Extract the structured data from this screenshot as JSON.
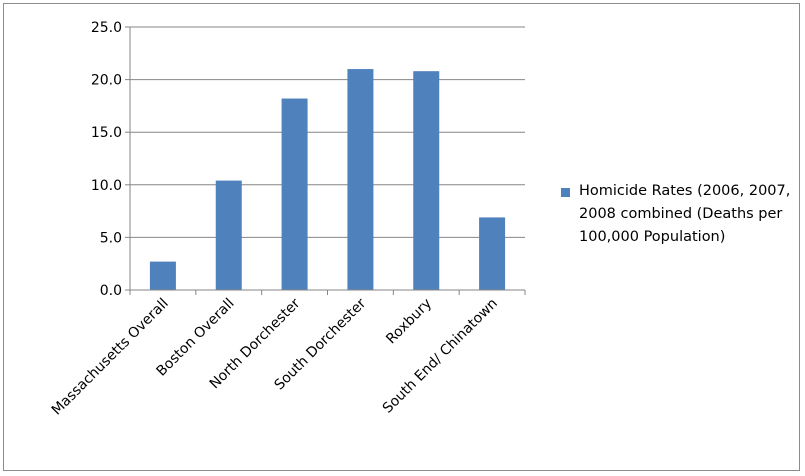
{
  "chart_data": {
    "type": "bar",
    "categories": [
      "Massachusetts Overall",
      "Boston Overall",
      "North Dorchester",
      "South Dorchester",
      "Roxbury",
      "South End/ Chinatown"
    ],
    "series": [
      {
        "name": "Homicide Rates (2006, 2007, 2008 combined (Deaths per 100,000 Population)",
        "values": [
          2.7,
          10.4,
          18.2,
          21.0,
          20.8,
          6.9
        ],
        "color": "#4f81bd"
      }
    ],
    "ylim": [
      0,
      25
    ],
    "yticks": [
      "0.0",
      "5.0",
      "10.0",
      "15.0",
      "20.0",
      "25.0"
    ],
    "grid": true,
    "legend": "right",
    "title": "",
    "xlabel": "",
    "ylabel": ""
  }
}
